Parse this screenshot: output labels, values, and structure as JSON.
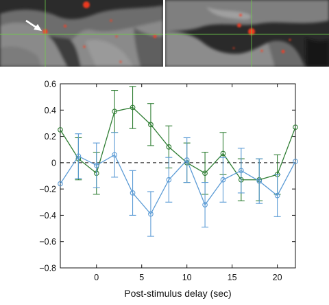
{
  "chart_data": {
    "type": "line",
    "x": [
      -4,
      -2,
      0,
      2,
      4,
      6,
      8,
      10,
      12,
      14,
      16,
      18,
      20,
      22
    ],
    "series": [
      {
        "color": "#2e7d32",
        "values": [
          0.25,
          0.03,
          -0.08,
          0.39,
          0.42,
          0.29,
          0.12,
          0.0,
          -0.08,
          0.07,
          -0.13,
          -0.13,
          -0.09,
          0.27
        ],
        "errors": [
          0.0,
          0.16,
          0.16,
          0.16,
          0.16,
          0.16,
          0.16,
          0.15,
          0.16,
          0.16,
          0.16,
          0.16,
          0.15,
          0.0
        ]
      },
      {
        "color": "#5b9bd5",
        "values": [
          -0.16,
          0.05,
          -0.02,
          0.06,
          -0.23,
          -0.39,
          -0.13,
          0.02,
          -0.32,
          -0.13,
          -0.06,
          -0.14,
          -0.25,
          0.01
        ],
        "errors": [
          0.0,
          0.17,
          0.17,
          0.17,
          0.17,
          0.17,
          0.17,
          0.17,
          0.17,
          0.17,
          0.17,
          0.17,
          0.16,
          0.0
        ]
      }
    ],
    "xlabel": "Post-stimulus delay (sec)",
    "ylabel": "",
    "xlim": [
      -4,
      22
    ],
    "ylim": [
      -0.8,
      0.6
    ],
    "xticks": [
      0,
      5,
      10,
      15,
      20
    ],
    "yticks": [
      0.6,
      0.4,
      0.2,
      0,
      -0.2,
      -0.4,
      -0.6,
      -0.8
    ],
    "ytick_labels": [
      "0.6",
      "0.4",
      "0.2",
      "0",
      "−0.2",
      "−0.4",
      "−0.6",
      "−0.8"
    ],
    "reference_line": {
      "y": 0,
      "style": "dashed"
    },
    "grid": false
  },
  "images": {
    "left": {
      "arrow_icon": "white-arrow",
      "overlay_color": "#ff3b1f",
      "crosshair_color": "#6fcf4a"
    },
    "right": {
      "overlay_color": "#ff3b1f",
      "crosshair_color": "#6fcf4a"
    }
  }
}
